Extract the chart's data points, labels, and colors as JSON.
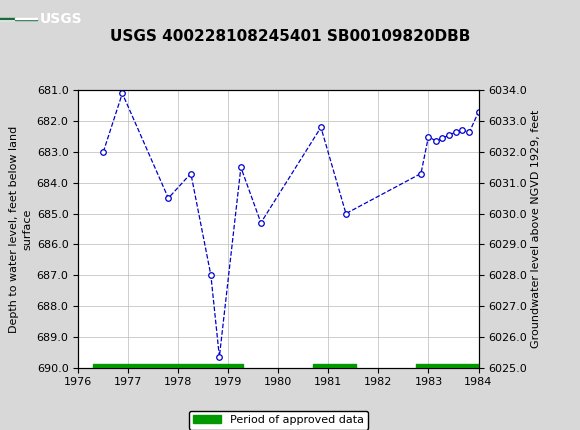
{
  "title": "USGS 400228108245401 SB00109820DBB",
  "ylabel_left": "Depth to water level, feet below land\nsurface",
  "ylabel_right": "Groundwater level above NGVD 1929, feet",
  "xlim": [
    1976,
    1984
  ],
  "ylim_left": [
    690.0,
    681.0
  ],
  "ylim_right": [
    6025.0,
    6034.0
  ],
  "xticks": [
    1976,
    1977,
    1978,
    1979,
    1980,
    1981,
    1982,
    1983,
    1984
  ],
  "yticks_left": [
    681.0,
    682.0,
    683.0,
    684.0,
    685.0,
    686.0,
    687.0,
    688.0,
    689.0,
    690.0
  ],
  "yticks_right": [
    6025.0,
    6026.0,
    6027.0,
    6028.0,
    6029.0,
    6030.0,
    6031.0,
    6032.0,
    6033.0,
    6034.0
  ],
  "data_x": [
    1976.5,
    1976.88,
    1977.8,
    1978.25,
    1978.65,
    1978.82,
    1979.25,
    1979.65,
    1980.85,
    1981.35,
    1982.85,
    1983.0,
    1983.15,
    1983.28,
    1983.42,
    1983.55,
    1983.68,
    1983.82,
    1984.0,
    1984.1
  ],
  "data_y_left": [
    683.0,
    681.1,
    684.5,
    683.7,
    687.0,
    689.65,
    683.5,
    685.3,
    682.2,
    685.0,
    683.7,
    682.5,
    682.65,
    682.55,
    682.45,
    682.35,
    682.3,
    682.35,
    681.7,
    681.55
  ],
  "line_color": "#0000cc",
  "marker_color": "#0000cc",
  "marker_face": "white",
  "marker_size": 4,
  "approved_bars": [
    {
      "start": 1976.3,
      "end": 1979.3
    },
    {
      "start": 1980.7,
      "end": 1981.55
    },
    {
      "start": 1982.75,
      "end": 1984.15
    }
  ],
  "approved_color": "#009900",
  "header_color": "#1a6b3c",
  "bg_color": "#d8d8d8",
  "plot_bg": "white",
  "grid_color": "#bbbbbb",
  "title_fontsize": 11,
  "tick_fontsize": 8,
  "ylabel_fontsize": 8
}
